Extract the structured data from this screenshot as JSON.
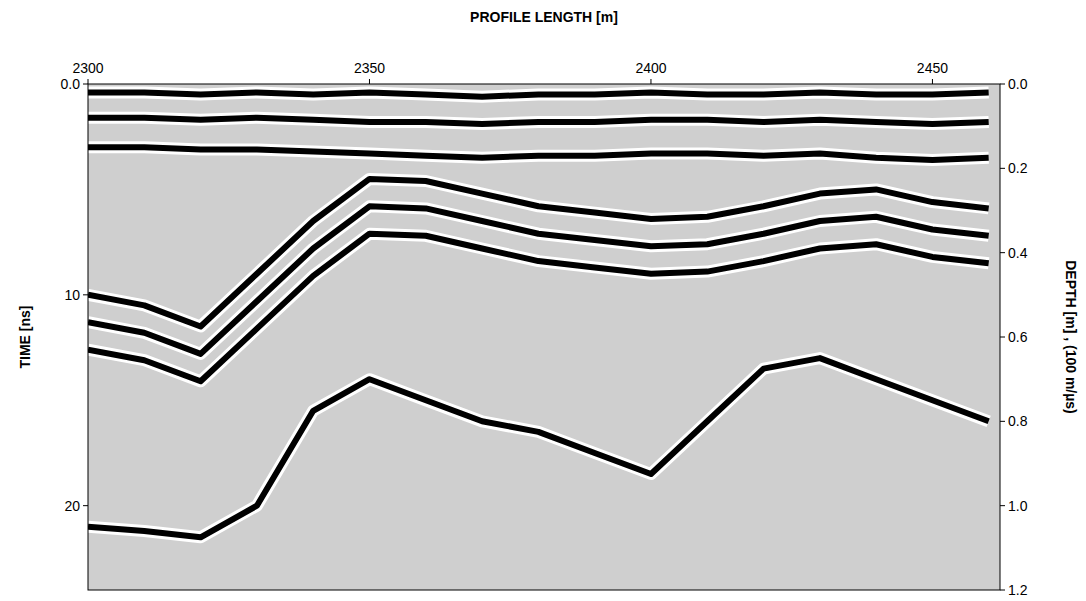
{
  "chart_data": {
    "type": "line",
    "title": "PROFILE LENGTH  [m]",
    "y_label": "TIME  [ns]",
    "y2_label": "DEPTH  [m] , (100 m/µs)",
    "x": [
      2300,
      2310,
      2320,
      2330,
      2340,
      2350,
      2360,
      2370,
      2380,
      2390,
      2400,
      2410,
      2420,
      2430,
      2440,
      2450,
      2460
    ],
    "series": [
      {
        "color": "#000000",
        "line_style": "solid",
        "values": [
          0.4,
          0.4,
          0.5,
          0.4,
          0.5,
          0.4,
          0.5,
          0.6,
          0.5,
          0.5,
          0.4,
          0.5,
          0.5,
          0.4,
          0.5,
          0.5,
          0.4
        ]
      },
      {
        "color": "#000000",
        "line_style": "solid",
        "values": [
          1.6,
          1.6,
          1.7,
          1.6,
          1.7,
          1.8,
          1.8,
          1.9,
          1.8,
          1.8,
          1.7,
          1.7,
          1.8,
          1.7,
          1.8,
          1.9,
          1.8
        ]
      },
      {
        "color": "#000000",
        "line_style": "solid",
        "values": [
          3.0,
          3.0,
          3.1,
          3.1,
          3.2,
          3.3,
          3.4,
          3.5,
          3.4,
          3.4,
          3.3,
          3.3,
          3.4,
          3.3,
          3.5,
          3.6,
          3.5
        ]
      },
      {
        "color": "#000000",
        "line_style": "solid",
        "values": [
          10.0,
          10.5,
          11.5,
          9.0,
          6.5,
          4.5,
          4.6,
          5.2,
          5.8,
          6.1,
          6.4,
          6.3,
          5.8,
          5.2,
          5.0,
          5.6,
          5.9
        ]
      },
      {
        "color": "#000000",
        "line_style": "solid",
        "values": [
          11.3,
          11.8,
          12.8,
          10.3,
          7.8,
          5.8,
          5.9,
          6.5,
          7.1,
          7.4,
          7.7,
          7.6,
          7.1,
          6.5,
          6.3,
          6.9,
          7.2
        ]
      },
      {
        "color": "#000000",
        "line_style": "solid",
        "values": [
          12.6,
          13.1,
          14.1,
          11.6,
          9.1,
          7.1,
          7.2,
          7.8,
          8.4,
          8.7,
          9.0,
          8.9,
          8.4,
          7.8,
          7.6,
          8.2,
          8.5
        ]
      },
      {
        "color": "#000000",
        "line_style": "solid",
        "values": [
          21.0,
          21.2,
          21.5,
          20.0,
          15.5,
          14.0,
          15.0,
          16.0,
          16.5,
          17.5,
          18.5,
          16.0,
          13.5,
          13.0,
          14.0,
          15.0,
          16.0
        ]
      }
    ],
    "xlim": [
      2300,
      2462
    ],
    "xticks": [
      2300,
      2350,
      2400,
      2450
    ],
    "ylim": [
      0,
      24
    ],
    "yticks": [
      {
        "value": 0,
        "label": "0.0"
      },
      10,
      20
    ],
    "y2lim": [
      0,
      1.2
    ],
    "y2ticks": [
      {
        "value": 0,
        "label": "0.0"
      },
      0.2,
      0.4,
      0.6,
      0.8,
      {
        "value": 1,
        "label": "1.0"
      },
      1.2
    ],
    "grid": false
  }
}
